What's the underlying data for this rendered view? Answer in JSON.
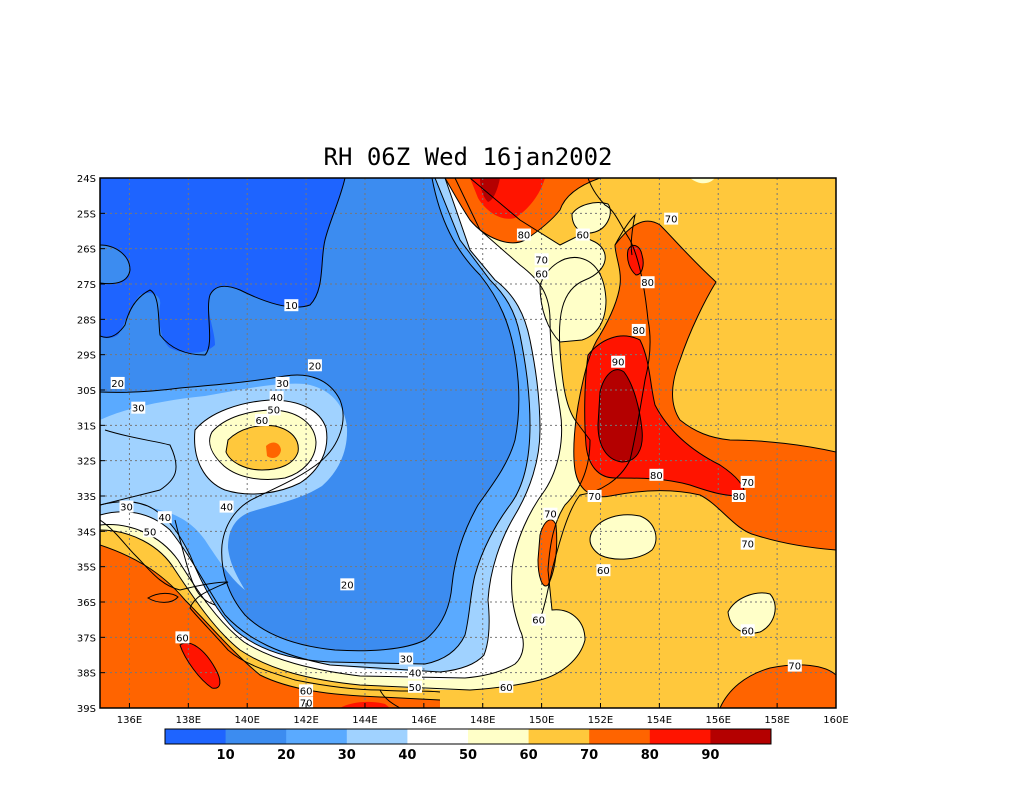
{
  "chart_data": {
    "type": "heatmap",
    "title": "RH 06Z Wed 16jan2002",
    "variable": "RH",
    "x_ticks": [
      "136E",
      "138E",
      "140E",
      "142E",
      "144E",
      "146E",
      "148E",
      "150E",
      "152E",
      "154E",
      "156E",
      "158E",
      "160E"
    ],
    "y_ticks": [
      "24S",
      "25S",
      "26S",
      "27S",
      "28S",
      "29S",
      "30S",
      "31S",
      "32S",
      "33S",
      "34S",
      "35S",
      "36S",
      "37S",
      "38S",
      "39S"
    ],
    "xlim": [
      135,
      160
    ],
    "ylim": [
      -39,
      -24
    ],
    "grid": true,
    "colorbar": {
      "labels": [
        "10",
        "20",
        "30",
        "40",
        "50",
        "60",
        "70",
        "80",
        "90"
      ],
      "colors": [
        "#1e64ff",
        "#3c8cf0",
        "#5aaaff",
        "#a0d2ff",
        "#ffffff",
        "#ffffc8",
        "#ffc83c",
        "#ff6400",
        "#ff1400",
        "#b40000"
      ]
    },
    "contour_labels": [
      {
        "text": "10",
        "lon": 141.5,
        "lat": -27.6
      },
      {
        "text": "20",
        "lon": 142.3,
        "lat": -29.3
      },
      {
        "text": "20",
        "lon": 135.6,
        "lat": -29.8
      },
      {
        "text": "30",
        "lon": 141.2,
        "lat": -29.8
      },
      {
        "text": "30",
        "lon": 136.3,
        "lat": -30.5
      },
      {
        "text": "40",
        "lon": 141.0,
        "lat": -30.2
      },
      {
        "text": "50",
        "lon": 140.9,
        "lat": -30.55
      },
      {
        "text": "60",
        "lon": 140.5,
        "lat": -30.85
      },
      {
        "text": "40",
        "lon": 139.3,
        "lat": -33.3
      },
      {
        "text": "30",
        "lon": 135.9,
        "lat": -33.3
      },
      {
        "text": "40",
        "lon": 137.2,
        "lat": -33.6
      },
      {
        "text": "50",
        "lon": 136.7,
        "lat": -34.0
      },
      {
        "text": "20",
        "lon": 143.4,
        "lat": -35.5
      },
      {
        "text": "60",
        "lon": 137.8,
        "lat": -37.0
      },
      {
        "text": "30",
        "lon": 145.4,
        "lat": -37.6
      },
      {
        "text": "40",
        "lon": 145.7,
        "lat": -38.0
      },
      {
        "text": "50",
        "lon": 145.7,
        "lat": -38.4
      },
      {
        "text": "60",
        "lon": 142.0,
        "lat": -38.5
      },
      {
        "text": "70",
        "lon": 142.0,
        "lat": -38.85
      },
      {
        "text": "60",
        "lon": 148.8,
        "lat": -38.4
      },
      {
        "text": "60",
        "lon": 149.9,
        "lat": -36.5
      },
      {
        "text": "80",
        "lon": 149.4,
        "lat": -25.6
      },
      {
        "text": "70",
        "lon": 150.0,
        "lat": -26.3
      },
      {
        "text": "60",
        "lon": 150.0,
        "lat": -26.7
      },
      {
        "text": "60",
        "lon": 151.4,
        "lat": -25.6
      },
      {
        "text": "70",
        "lon": 154.4,
        "lat": -25.15
      },
      {
        "text": "80",
        "lon": 153.6,
        "lat": -26.95
      },
      {
        "text": "80",
        "lon": 153.3,
        "lat": -28.3
      },
      {
        "text": "90",
        "lon": 152.6,
        "lat": -29.2
      },
      {
        "text": "80",
        "lon": 153.9,
        "lat": -32.4
      },
      {
        "text": "80",
        "lon": 156.7,
        "lat": -33.0
      },
      {
        "text": "70",
        "lon": 151.8,
        "lat": -33.0
      },
      {
        "text": "70",
        "lon": 150.3,
        "lat": -33.5
      },
      {
        "text": "70",
        "lon": 157.0,
        "lat": -32.6
      },
      {
        "text": "70",
        "lon": 157.0,
        "lat": -34.35
      },
      {
        "text": "60",
        "lon": 152.1,
        "lat": -35.1
      },
      {
        "text": "60",
        "lon": 157.0,
        "lat": -36.8
      },
      {
        "text": "70",
        "lon": 158.6,
        "lat": -37.8
      }
    ]
  }
}
